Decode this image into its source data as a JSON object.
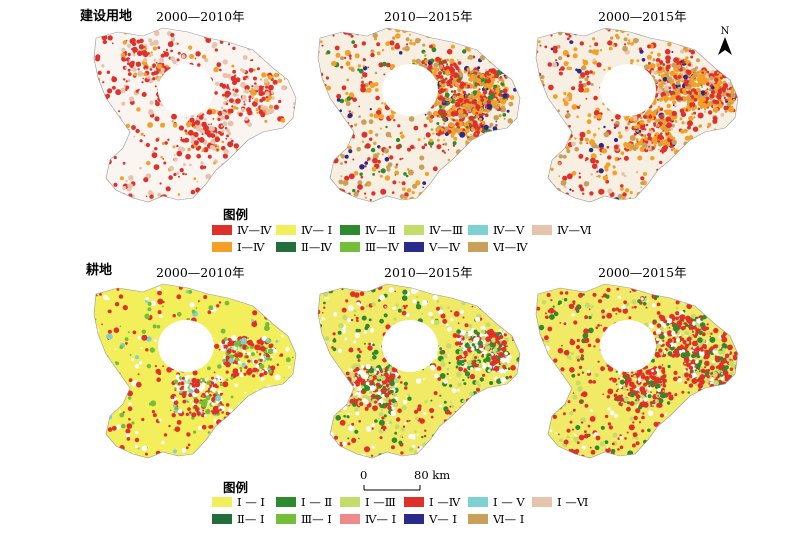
{
  "sections": {
    "construction": {
      "label": "建设用地"
    },
    "cultivated": {
      "label": "耕地"
    }
  },
  "panel_titles": {
    "p1": "2000—2010年",
    "p2": "2010—2015年",
    "p3": "2000—2015年"
  },
  "legend_title": "图例",
  "legend_construction": [
    {
      "label": "Ⅳ—Ⅳ",
      "color": "#e0302a"
    },
    {
      "label": "Ⅳ— Ⅰ",
      "color": "#f2ef5a"
    },
    {
      "label": "Ⅳ—Ⅱ",
      "color": "#2f8a2f"
    },
    {
      "label": "Ⅳ—Ⅲ",
      "color": "#c3dc6a"
    },
    {
      "label": "Ⅳ—Ⅴ",
      "color": "#7fd0d3"
    },
    {
      "label": "Ⅳ—Ⅵ",
      "color": "#e7c2ad"
    },
    {
      "label": "Ⅰ—Ⅳ",
      "color": "#f3a024"
    },
    {
      "label": "Ⅱ—Ⅳ",
      "color": "#236e3a"
    },
    {
      "label": "Ⅲ—Ⅳ",
      "color": "#73bf3c"
    },
    {
      "label": "Ⅴ—Ⅳ",
      "color": "#2a2a8a"
    },
    {
      "label": "Ⅵ—Ⅳ",
      "color": "#c8a05a"
    }
  ],
  "legend_cultivated": [
    {
      "label": "Ⅰ — Ⅰ",
      "color": "#f2ef5a"
    },
    {
      "label": "Ⅰ — Ⅱ",
      "color": "#2f8a2f"
    },
    {
      "label": "Ⅰ —Ⅲ",
      "color": "#c3dc6a"
    },
    {
      "label": "Ⅰ —Ⅳ",
      "color": "#e0302a"
    },
    {
      "label": "Ⅰ — Ⅴ",
      "color": "#7fd0d3"
    },
    {
      "label": "Ⅰ —Ⅵ",
      "color": "#e7c2ad"
    },
    {
      "label": "Ⅱ— Ⅰ",
      "color": "#236e3a"
    },
    {
      "label": "Ⅲ— Ⅰ",
      "color": "#73bf3c"
    },
    {
      "label": "Ⅳ— Ⅰ",
      "color": "#f08a8a"
    },
    {
      "label": "Ⅴ— Ⅰ",
      "color": "#2a2a8a"
    },
    {
      "label": "Ⅵ— Ⅰ",
      "color": "#c8a05a"
    }
  ],
  "north_arrow": {
    "label": "N"
  },
  "scale": {
    "start": "0",
    "end": "80 km"
  }
}
